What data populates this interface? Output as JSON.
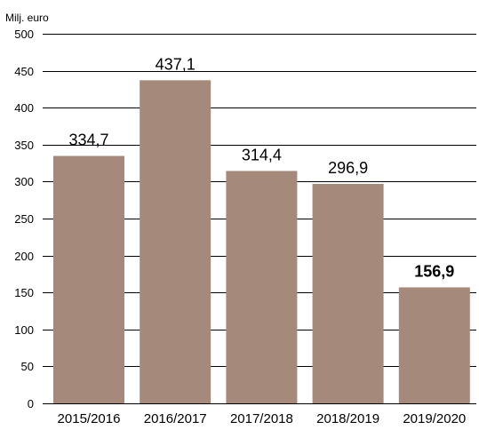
{
  "chart_data": {
    "type": "bar",
    "unit_label": "Milj. euro",
    "categories": [
      "2015/2016",
      "2016/2017",
      "2017/2018",
      "2018/2019",
      "2019/2020"
    ],
    "values": [
      334.7,
      437.1,
      314.4,
      296.9,
      156.9
    ],
    "value_labels": [
      "334,7",
      "437,1",
      "314,4",
      "296,9",
      "156,9"
    ],
    "bold_labels": [
      false,
      false,
      false,
      false,
      true
    ],
    "ylim": [
      0,
      500
    ],
    "yticks": [
      0,
      50,
      100,
      150,
      200,
      250,
      300,
      350,
      400,
      450,
      500
    ],
    "grid": true,
    "bar_color": "#a5897a"
  }
}
